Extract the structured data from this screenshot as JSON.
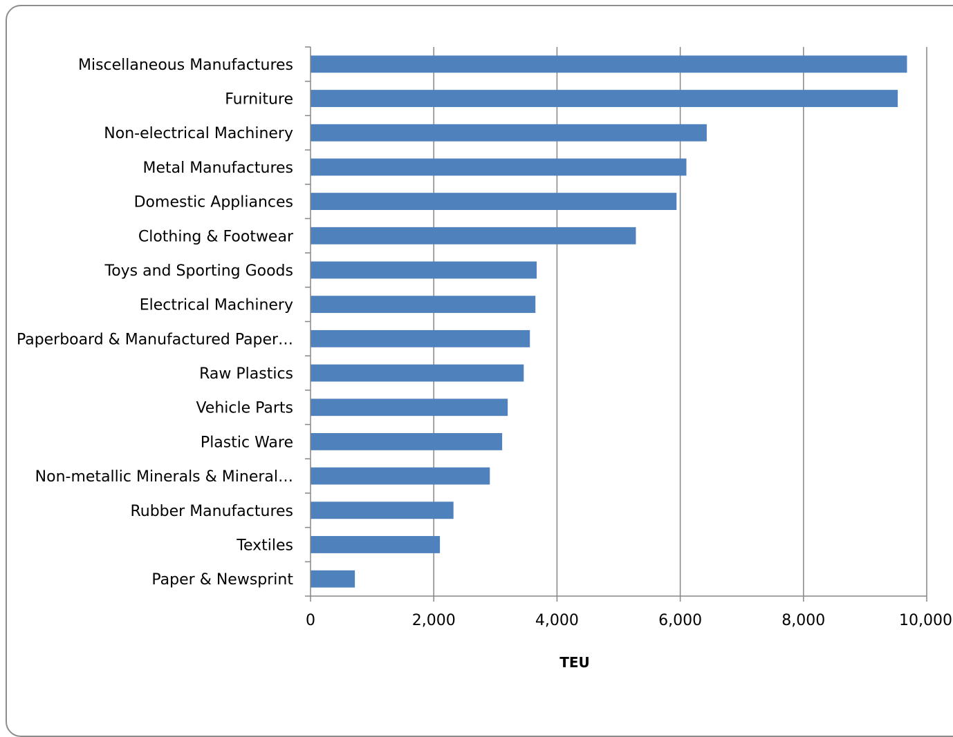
{
  "chart_data": {
    "type": "bar",
    "orientation": "horizontal",
    "categories": [
      "Miscellaneous Manufactures",
      "Furniture",
      "Non-electrical Machinery",
      "Metal Manufactures",
      "Domestic Appliances",
      "Clothing & Footwear",
      "Toys and Sporting Goods",
      "Electrical Machinery",
      "Paperboard & Manufactured Paper…",
      "Raw Plastics",
      "Vehicle Parts",
      "Plastic Ware",
      "Non-metallic Minerals & Mineral…",
      "Rubber Manufactures",
      "Textiles",
      "Paper & Newsprint"
    ],
    "values": [
      9680,
      9530,
      6430,
      6100,
      5940,
      5280,
      3670,
      3650,
      3560,
      3460,
      3200,
      3110,
      2910,
      2320,
      2100,
      720
    ],
    "xlabel": "TEU",
    "xlim": [
      0,
      10000
    ],
    "xticks": [
      0,
      2000,
      4000,
      6000,
      8000,
      10000
    ],
    "xtick_labels": [
      "0",
      "2,000",
      "4,000",
      "6,000",
      "8,000",
      "10,000"
    ],
    "grid": "vertical major gridlines",
    "bar_color": "#4f81bd",
    "grid_color": "#868686"
  }
}
